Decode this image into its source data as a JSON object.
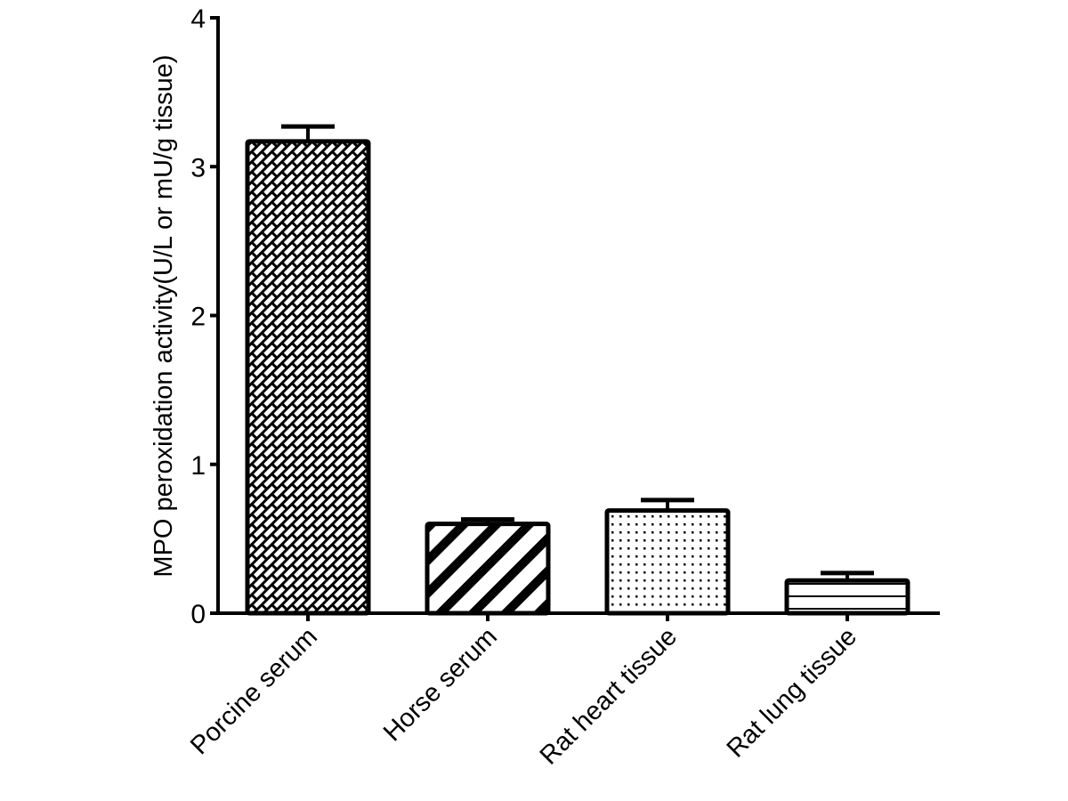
{
  "chart_data": {
    "type": "bar",
    "title": "",
    "xlabel": "",
    "ylabel": "MPO peroxidation activity(U/L or mU/g tissue)",
    "ylim": [
      0,
      4
    ],
    "yticks": [
      0,
      1,
      2,
      3,
      4
    ],
    "grid": false,
    "legend": null,
    "categories": [
      "Porcine serum",
      "Horse serum",
      "Rat heart tissue",
      "Rat lung tissue"
    ],
    "values": [
      3.17,
      0.6,
      0.69,
      0.22
    ],
    "error_upper": [
      0.1,
      0.03,
      0.07,
      0.05
    ],
    "patterns": [
      "brick-crosshatch",
      "diagonal-stripes",
      "dots",
      "horizontal-lines"
    ],
    "colors": {
      "bar_fill": "#ffffff",
      "bar_stroke": "#000000",
      "axis": "#000000"
    }
  }
}
